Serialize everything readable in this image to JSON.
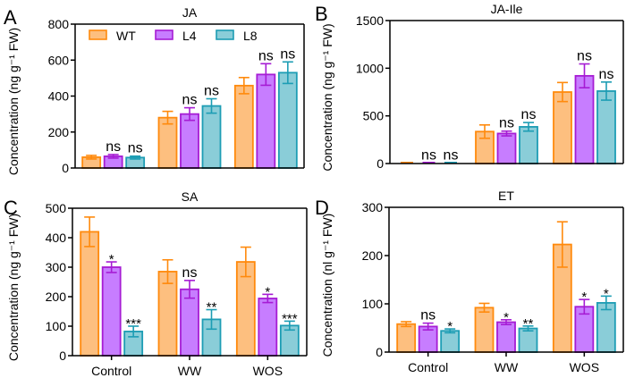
{
  "colors": {
    "WT": {
      "fill": "#FDBF7F",
      "stroke": "#FF8A0D"
    },
    "L4": {
      "fill": "#C77DFF",
      "stroke": "#A61CD4"
    },
    "L8": {
      "fill": "#8ACDD8",
      "stroke": "#1D9DB4"
    }
  },
  "legend": [
    "WT",
    "L4",
    "L8"
  ],
  "chart_data": [
    {
      "panel": "A",
      "type": "bar",
      "title": "JA",
      "ylabel": "Concentration (ng g⁻¹ FW)",
      "xlabel": "",
      "ylim": [
        0,
        800
      ],
      "yticks": [
        0,
        200,
        400,
        600,
        800
      ],
      "categories": [
        "Control",
        "WW",
        "WOS"
      ],
      "show_xticklabels": false,
      "legend": "top-left",
      "series": [
        {
          "name": "WT",
          "values": [
            60,
            280,
            458
          ],
          "errors": [
            10,
            35,
            45
          ],
          "sig": [
            "",
            "",
            ""
          ]
        },
        {
          "name": "L4",
          "values": [
            65,
            300,
            520
          ],
          "errors": [
            10,
            35,
            60
          ],
          "sig": [
            "ns",
            "ns",
            "ns"
          ]
        },
        {
          "name": "L8",
          "values": [
            58,
            345,
            530
          ],
          "errors": [
            8,
            40,
            60
          ],
          "sig": [
            "ns",
            "ns",
            "ns"
          ]
        }
      ]
    },
    {
      "panel": "B",
      "type": "bar",
      "title": "JA-Ile",
      "ylabel": "Concentration (ng g⁻¹ FW)",
      "xlabel": "",
      "ylim": [
        0,
        1500
      ],
      "yticks": [
        0,
        500,
        1000,
        1500
      ],
      "categories": [
        "Control",
        "WW",
        "WOS"
      ],
      "show_xticklabels": false,
      "series": [
        {
          "name": "WT",
          "values": [
            5,
            335,
            750
          ],
          "errors": [
            0,
            70,
            100
          ],
          "sig": [
            "",
            "",
            ""
          ]
        },
        {
          "name": "L4",
          "values": [
            5,
            315,
            920
          ],
          "errors": [
            0,
            25,
            125
          ],
          "sig": [
            "ns",
            "ns",
            "ns"
          ]
        },
        {
          "name": "L8",
          "values": [
            5,
            385,
            760
          ],
          "errors": [
            0,
            45,
            95
          ],
          "sig": [
            "ns",
            "ns",
            "ns"
          ]
        }
      ]
    },
    {
      "panel": "C",
      "type": "bar",
      "title": "SA",
      "ylabel": "Concentration (ng g⁻¹ FW)",
      "xlabel": "",
      "ylim": [
        0,
        500
      ],
      "yticks": [
        0,
        100,
        200,
        300,
        400,
        500
      ],
      "categories": [
        "Control",
        "WW",
        "WOS"
      ],
      "show_xticklabels": true,
      "series": [
        {
          "name": "WT",
          "values": [
            420,
            285,
            318
          ],
          "errors": [
            50,
            40,
            50
          ],
          "sig": [
            "",
            "",
            ""
          ]
        },
        {
          "name": "L4",
          "values": [
            300,
            225,
            194
          ],
          "errors": [
            18,
            30,
            14
          ],
          "sig": [
            "*",
            "ns",
            "*"
          ]
        },
        {
          "name": "L8",
          "values": [
            82,
            123,
            102
          ],
          "errors": [
            18,
            33,
            15
          ],
          "sig": [
            "***",
            "**",
            "***"
          ]
        }
      ]
    },
    {
      "panel": "D",
      "type": "bar",
      "title": "ET",
      "ylabel": "Concentration (nl g⁻¹ FW)",
      "xlabel": "",
      "ylim": [
        0,
        300
      ],
      "yticks": [
        0,
        100,
        200,
        300
      ],
      "categories": [
        "Control",
        "WW",
        "WOS"
      ],
      "show_xticklabels": true,
      "series": [
        {
          "name": "WT",
          "values": [
            58,
            92,
            223
          ],
          "errors": [
            5,
            9,
            47
          ],
          "sig": [
            "",
            "",
            ""
          ]
        },
        {
          "name": "L4",
          "values": [
            53,
            62,
            94
          ],
          "errors": [
            7,
            5,
            15
          ],
          "sig": [
            "ns",
            "*",
            "*"
          ]
        },
        {
          "name": "L8",
          "values": [
            44,
            49,
            102
          ],
          "errors": [
            4,
            5,
            14
          ],
          "sig": [
            "*",
            "**",
            "*"
          ]
        }
      ]
    }
  ]
}
